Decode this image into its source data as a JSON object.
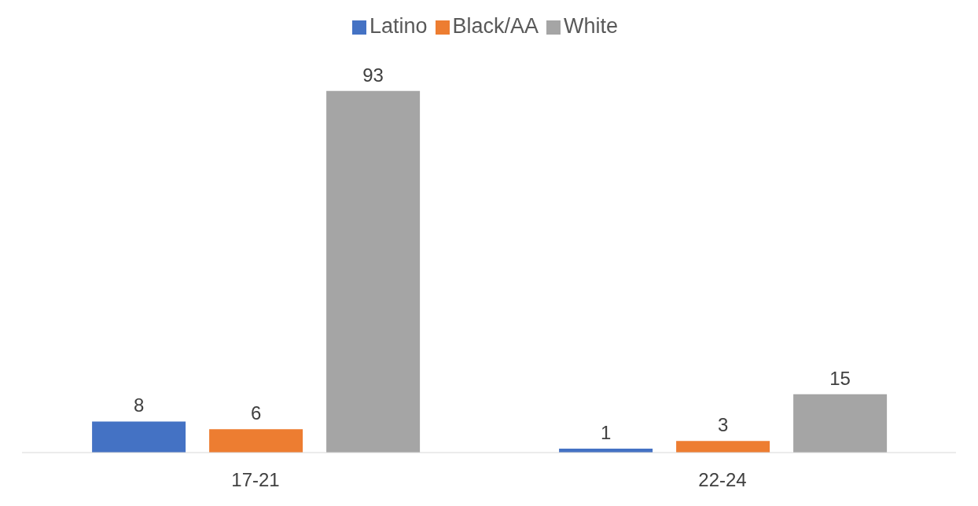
{
  "chart_data": {
    "type": "bar",
    "categories": [
      "17-21",
      "22-24"
    ],
    "series": [
      {
        "name": "Latino",
        "color": "#4472c4",
        "values": [
          8,
          1
        ]
      },
      {
        "name": "Black/AA",
        "color": "#ed7d31",
        "values": [
          6,
          3
        ]
      },
      {
        "name": "White",
        "color": "#a5a5a5",
        "values": [
          93,
          15
        ]
      }
    ],
    "data_labels": true,
    "legend": "top",
    "grid": false
  }
}
